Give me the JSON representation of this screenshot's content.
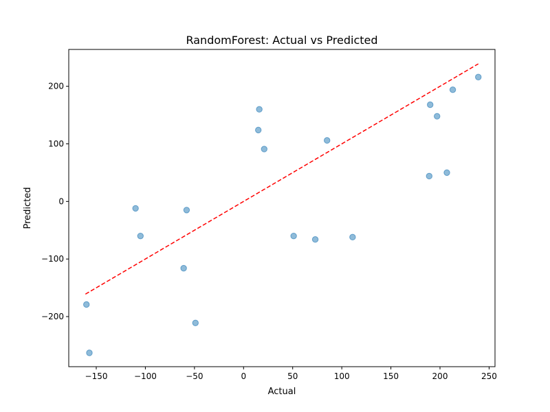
{
  "chart_data": {
    "type": "scatter",
    "title": "RandomForest: Actual vs Predicted",
    "xlabel": "Actual",
    "ylabel": "Predicted",
    "xlim": [
      -178,
      256
    ],
    "ylim": [
      -287,
      264
    ],
    "xticks": [
      -150,
      -100,
      -50,
      0,
      50,
      100,
      150,
      200,
      250
    ],
    "xtick_labels": [
      "−150",
      "−100",
      "−50",
      "0",
      "50",
      "100",
      "150",
      "200",
      "250"
    ],
    "yticks": [
      -200,
      -100,
      0,
      100,
      200
    ],
    "ytick_labels": [
      "−200",
      "−100",
      "0",
      "100",
      "200"
    ],
    "grid": false,
    "points": [
      {
        "x": -160,
        "y": -179
      },
      {
        "x": -157,
        "y": -263
      },
      {
        "x": -110,
        "y": -12
      },
      {
        "x": -105,
        "y": -60
      },
      {
        "x": -61,
        "y": -116
      },
      {
        "x": -58,
        "y": -15
      },
      {
        "x": -49,
        "y": -211
      },
      {
        "x": 16,
        "y": 160
      },
      {
        "x": 15,
        "y": 124
      },
      {
        "x": 21,
        "y": 91
      },
      {
        "x": 51,
        "y": -60
      },
      {
        "x": 73,
        "y": -66
      },
      {
        "x": 85,
        "y": 106
      },
      {
        "x": 111,
        "y": -62
      },
      {
        "x": 189,
        "y": 44
      },
      {
        "x": 190,
        "y": 168
      },
      {
        "x": 197,
        "y": 148
      },
      {
        "x": 207,
        "y": 50
      },
      {
        "x": 213,
        "y": 194
      },
      {
        "x": 239,
        "y": 216
      }
    ],
    "reference_line": {
      "x": [
        -161,
        239
      ],
      "y": [
        -161,
        239
      ]
    },
    "colors": {
      "points": "#1f77b4",
      "reference_line": "#ff0000"
    }
  }
}
